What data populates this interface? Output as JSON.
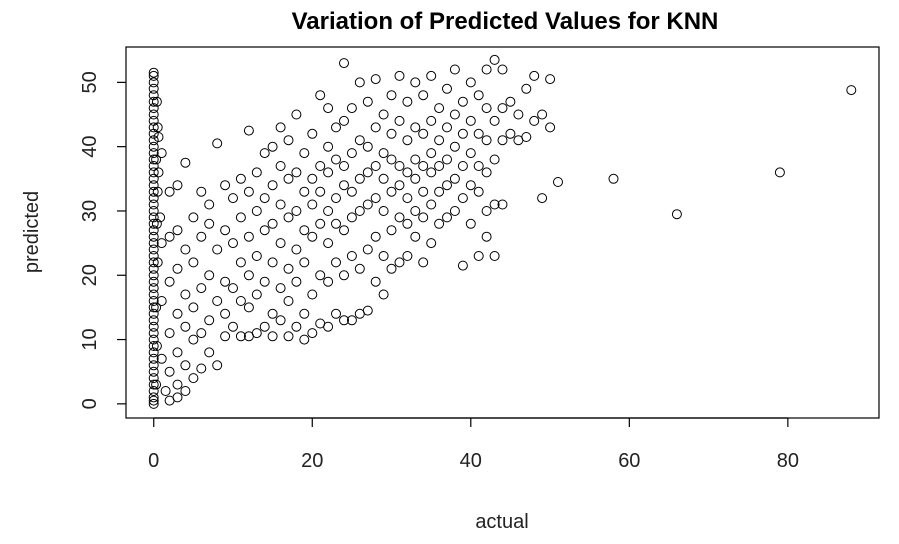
{
  "chart_data": {
    "type": "scatter",
    "title": "Variation of Predicted Values for KNN",
    "xlabel": "actual",
    "ylabel": "predicted",
    "xlim": [
      -3.5,
      91.5
    ],
    "ylim": [
      -2.2,
      55.5
    ],
    "x_ticks": [
      0,
      20,
      40,
      60,
      80
    ],
    "y_ticks": [
      0,
      10,
      20,
      30,
      40,
      50
    ],
    "grid": false,
    "marker": "open-circle",
    "points": [
      [
        0,
        0
      ],
      [
        0,
        0.5
      ],
      [
        0,
        1
      ],
      [
        0,
        2
      ],
      [
        0,
        3
      ],
      [
        0,
        4
      ],
      [
        0,
        5
      ],
      [
        0,
        6
      ],
      [
        0,
        7
      ],
      [
        0,
        8
      ],
      [
        0,
        9
      ],
      [
        0,
        10
      ],
      [
        0,
        11
      ],
      [
        0,
        12
      ],
      [
        0,
        13
      ],
      [
        0,
        14
      ],
      [
        0,
        15
      ],
      [
        0,
        16
      ],
      [
        0,
        17
      ],
      [
        0,
        18
      ],
      [
        0,
        19
      ],
      [
        0,
        20
      ],
      [
        0,
        21
      ],
      [
        0,
        22
      ],
      [
        0,
        23
      ],
      [
        0,
        24
      ],
      [
        0,
        25
      ],
      [
        0,
        26
      ],
      [
        0,
        27
      ],
      [
        0,
        28
      ],
      [
        0,
        29
      ],
      [
        0,
        30
      ],
      [
        0,
        31
      ],
      [
        0,
        32
      ],
      [
        0,
        33
      ],
      [
        0,
        34
      ],
      [
        0,
        35
      ],
      [
        0,
        36
      ],
      [
        0,
        37
      ],
      [
        0,
        38
      ],
      [
        0,
        39
      ],
      [
        0,
        40
      ],
      [
        0,
        41
      ],
      [
        0,
        42
      ],
      [
        0,
        43
      ],
      [
        0,
        44
      ],
      [
        0,
        45
      ],
      [
        0,
        46
      ],
      [
        0,
        47
      ],
      [
        0,
        48
      ],
      [
        0,
        49
      ],
      [
        0,
        50
      ],
      [
        0,
        51
      ],
      [
        0,
        51.5
      ],
      [
        0.3,
        3
      ],
      [
        0.4,
        9
      ],
      [
        0.3,
        15
      ],
      [
        0.5,
        22
      ],
      [
        0.4,
        28
      ],
      [
        0.5,
        33
      ],
      [
        0.3,
        38
      ],
      [
        0.5,
        43
      ],
      [
        0.4,
        47
      ],
      [
        0.6,
        41.5
      ],
      [
        0.6,
        36
      ],
      [
        0.8,
        29
      ],
      [
        1,
        39
      ],
      [
        1,
        25
      ],
      [
        1,
        16
      ],
      [
        1,
        7
      ],
      [
        1.5,
        2
      ],
      [
        2,
        0.5
      ],
      [
        2,
        5
      ],
      [
        2,
        11
      ],
      [
        2,
        19
      ],
      [
        2,
        26
      ],
      [
        2,
        33
      ],
      [
        3,
        1
      ],
      [
        3,
        3
      ],
      [
        3,
        8
      ],
      [
        3,
        14
      ],
      [
        3,
        21
      ],
      [
        3,
        27
      ],
      [
        3,
        34
      ],
      [
        4,
        2
      ],
      [
        4,
        6
      ],
      [
        4,
        12
      ],
      [
        4,
        17
      ],
      [
        4,
        24
      ],
      [
        4,
        37.5
      ],
      [
        5,
        4
      ],
      [
        5,
        10
      ],
      [
        5,
        15
      ],
      [
        5,
        22
      ],
      [
        5,
        29
      ],
      [
        6,
        5.5
      ],
      [
        6,
        11
      ],
      [
        6,
        18
      ],
      [
        6,
        26
      ],
      [
        6,
        33
      ],
      [
        7,
        8
      ],
      [
        7,
        13
      ],
      [
        7,
        20
      ],
      [
        7,
        28
      ],
      [
        7,
        31
      ],
      [
        8,
        6
      ],
      [
        8,
        16
      ],
      [
        8,
        24
      ],
      [
        8,
        40.5
      ],
      [
        9,
        10.5
      ],
      [
        9,
        14
      ],
      [
        9,
        19
      ],
      [
        9,
        27
      ],
      [
        9,
        34
      ],
      [
        10,
        12
      ],
      [
        10,
        18
      ],
      [
        10,
        25
      ],
      [
        10,
        32
      ],
      [
        11,
        10.5
      ],
      [
        11,
        16
      ],
      [
        11,
        22
      ],
      [
        11,
        29
      ],
      [
        11,
        35
      ],
      [
        12,
        10.5
      ],
      [
        12,
        15
      ],
      [
        12,
        20
      ],
      [
        12,
        26
      ],
      [
        12,
        33
      ],
      [
        12,
        42.5
      ],
      [
        13,
        11
      ],
      [
        13,
        17
      ],
      [
        13,
        23
      ],
      [
        13,
        30
      ],
      [
        13,
        36
      ],
      [
        14,
        12
      ],
      [
        14,
        19
      ],
      [
        14,
        27
      ],
      [
        14,
        32
      ],
      [
        14,
        39
      ],
      [
        15,
        10.5
      ],
      [
        15,
        14
      ],
      [
        15,
        22
      ],
      [
        15,
        28
      ],
      [
        15,
        34
      ],
      [
        15,
        40
      ],
      [
        16,
        13
      ],
      [
        16,
        18
      ],
      [
        16,
        25
      ],
      [
        16,
        31
      ],
      [
        16,
        37
      ],
      [
        16,
        43
      ],
      [
        17,
        10.5
      ],
      [
        17,
        16
      ],
      [
        17,
        21
      ],
      [
        17,
        29
      ],
      [
        17,
        35
      ],
      [
        17,
        41
      ],
      [
        18,
        12
      ],
      [
        18,
        19
      ],
      [
        18,
        24
      ],
      [
        18,
        30
      ],
      [
        18,
        36
      ],
      [
        18,
        45
      ],
      [
        19,
        10
      ],
      [
        19,
        14
      ],
      [
        19,
        22
      ],
      [
        19,
        27
      ],
      [
        19,
        33
      ],
      [
        19,
        39
      ],
      [
        20,
        11
      ],
      [
        20,
        17
      ],
      [
        20,
        26
      ],
      [
        20,
        31
      ],
      [
        20,
        35
      ],
      [
        20,
        42
      ],
      [
        21,
        12.5
      ],
      [
        21,
        20
      ],
      [
        21,
        28
      ],
      [
        21,
        33
      ],
      [
        21,
        37
      ],
      [
        21,
        48
      ],
      [
        22,
        12
      ],
      [
        22,
        19
      ],
      [
        22,
        25
      ],
      [
        22,
        30
      ],
      [
        22,
        36
      ],
      [
        22,
        40
      ],
      [
        22,
        46
      ],
      [
        23,
        14
      ],
      [
        23,
        22
      ],
      [
        23,
        28
      ],
      [
        23,
        32
      ],
      [
        23,
        38
      ],
      [
        23,
        43
      ],
      [
        24,
        13
      ],
      [
        24,
        20
      ],
      [
        24,
        27
      ],
      [
        24,
        34
      ],
      [
        24,
        37
      ],
      [
        24,
        44
      ],
      [
        24,
        53
      ],
      [
        25,
        13
      ],
      [
        25,
        23
      ],
      [
        25,
        29
      ],
      [
        25,
        33
      ],
      [
        25,
        39
      ],
      [
        25,
        46
      ],
      [
        26,
        14
      ],
      [
        26,
        21
      ],
      [
        26,
        30
      ],
      [
        26,
        35
      ],
      [
        26,
        41
      ],
      [
        26,
        50
      ],
      [
        27,
        14.5
      ],
      [
        27,
        24
      ],
      [
        27,
        31
      ],
      [
        27,
        36
      ],
      [
        27,
        40
      ],
      [
        27,
        47
      ],
      [
        28,
        19
      ],
      [
        28,
        26
      ],
      [
        28,
        32
      ],
      [
        28,
        37
      ],
      [
        28,
        43
      ],
      [
        28,
        50.5
      ],
      [
        29,
        17
      ],
      [
        29,
        23
      ],
      [
        29,
        30
      ],
      [
        29,
        35
      ],
      [
        29,
        39
      ],
      [
        29,
        45
      ],
      [
        30,
        21
      ],
      [
        30,
        27
      ],
      [
        30,
        33
      ],
      [
        30,
        38
      ],
      [
        30,
        42
      ],
      [
        30,
        48
      ],
      [
        31,
        22
      ],
      [
        31,
        29
      ],
      [
        31,
        34
      ],
      [
        31,
        37
      ],
      [
        31,
        44
      ],
      [
        31,
        51
      ],
      [
        32,
        23
      ],
      [
        32,
        28
      ],
      [
        32,
        32
      ],
      [
        32,
        36
      ],
      [
        32,
        41
      ],
      [
        32,
        47
      ],
      [
        33,
        26
      ],
      [
        33,
        30
      ],
      [
        33,
        35
      ],
      [
        33,
        38
      ],
      [
        33,
        43
      ],
      [
        33,
        50
      ],
      [
        34,
        22
      ],
      [
        34,
        29
      ],
      [
        34,
        33
      ],
      [
        34,
        37
      ],
      [
        34,
        42
      ],
      [
        34,
        48
      ],
      [
        35,
        25
      ],
      [
        35,
        31
      ],
      [
        35,
        36
      ],
      [
        35,
        39
      ],
      [
        35,
        44
      ],
      [
        35,
        51
      ],
      [
        36,
        28
      ],
      [
        36,
        33
      ],
      [
        36,
        37
      ],
      [
        36,
        41
      ],
      [
        36,
        46
      ],
      [
        37,
        29
      ],
      [
        37,
        34
      ],
      [
        37,
        38
      ],
      [
        37,
        43
      ],
      [
        37,
        49
      ],
      [
        38,
        30
      ],
      [
        38,
        35
      ],
      [
        38,
        40
      ],
      [
        38,
        45
      ],
      [
        38,
        52
      ],
      [
        39,
        21.5
      ],
      [
        39,
        32
      ],
      [
        39,
        37
      ],
      [
        39,
        42
      ],
      [
        39,
        47
      ],
      [
        40,
        28
      ],
      [
        40,
        34
      ],
      [
        40,
        39
      ],
      [
        40,
        44
      ],
      [
        40,
        50
      ],
      [
        41,
        23
      ],
      [
        41,
        33
      ],
      [
        41,
        37
      ],
      [
        41,
        42
      ],
      [
        41,
        48
      ],
      [
        42,
        26
      ],
      [
        42,
        30
      ],
      [
        42,
        36
      ],
      [
        42,
        41
      ],
      [
        42,
        46
      ],
      [
        42,
        52
      ],
      [
        43,
        23
      ],
      [
        43,
        31
      ],
      [
        43,
        38
      ],
      [
        43,
        44
      ],
      [
        43,
        53.5
      ],
      [
        44,
        31
      ],
      [
        44,
        41
      ],
      [
        44,
        46
      ],
      [
        44,
        52
      ],
      [
        45,
        42
      ],
      [
        45,
        47
      ],
      [
        46,
        41
      ],
      [
        46,
        45
      ],
      [
        47,
        41.5
      ],
      [
        47,
        49
      ],
      [
        48,
        44
      ],
      [
        48,
        51
      ],
      [
        49,
        32
      ],
      [
        49,
        45
      ],
      [
        50,
        43
      ],
      [
        50,
        50.5
      ],
      [
        51,
        34.5
      ],
      [
        58,
        35
      ],
      [
        66,
        29.5
      ],
      [
        79,
        36
      ],
      [
        88,
        48.8
      ]
    ]
  }
}
